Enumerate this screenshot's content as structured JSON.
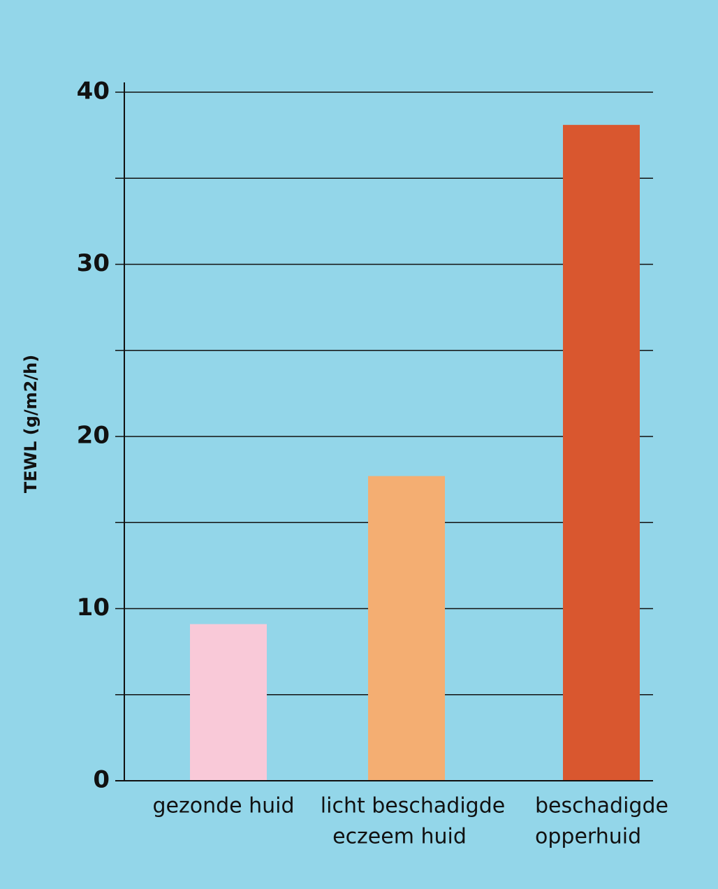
{
  "chart_data": {
    "type": "bar",
    "ylabel": "TEWL (g/m2/h)",
    "categories": [
      [
        "gezonde huid"
      ],
      [
        "licht beschadigde",
        "eczeem huid"
      ],
      [
        "beschadigde",
        "opperhuid"
      ]
    ],
    "values": [
      9.1,
      17.7,
      38.1
    ],
    "colors": [
      "#f9c9d8",
      "#f4ae72",
      "#d9572f"
    ],
    "ylim": [
      0,
      40
    ],
    "yticks": [
      0,
      10,
      20,
      30,
      40
    ],
    "yminorticks": [
      5,
      15,
      25,
      35
    ],
    "grid": true
  }
}
